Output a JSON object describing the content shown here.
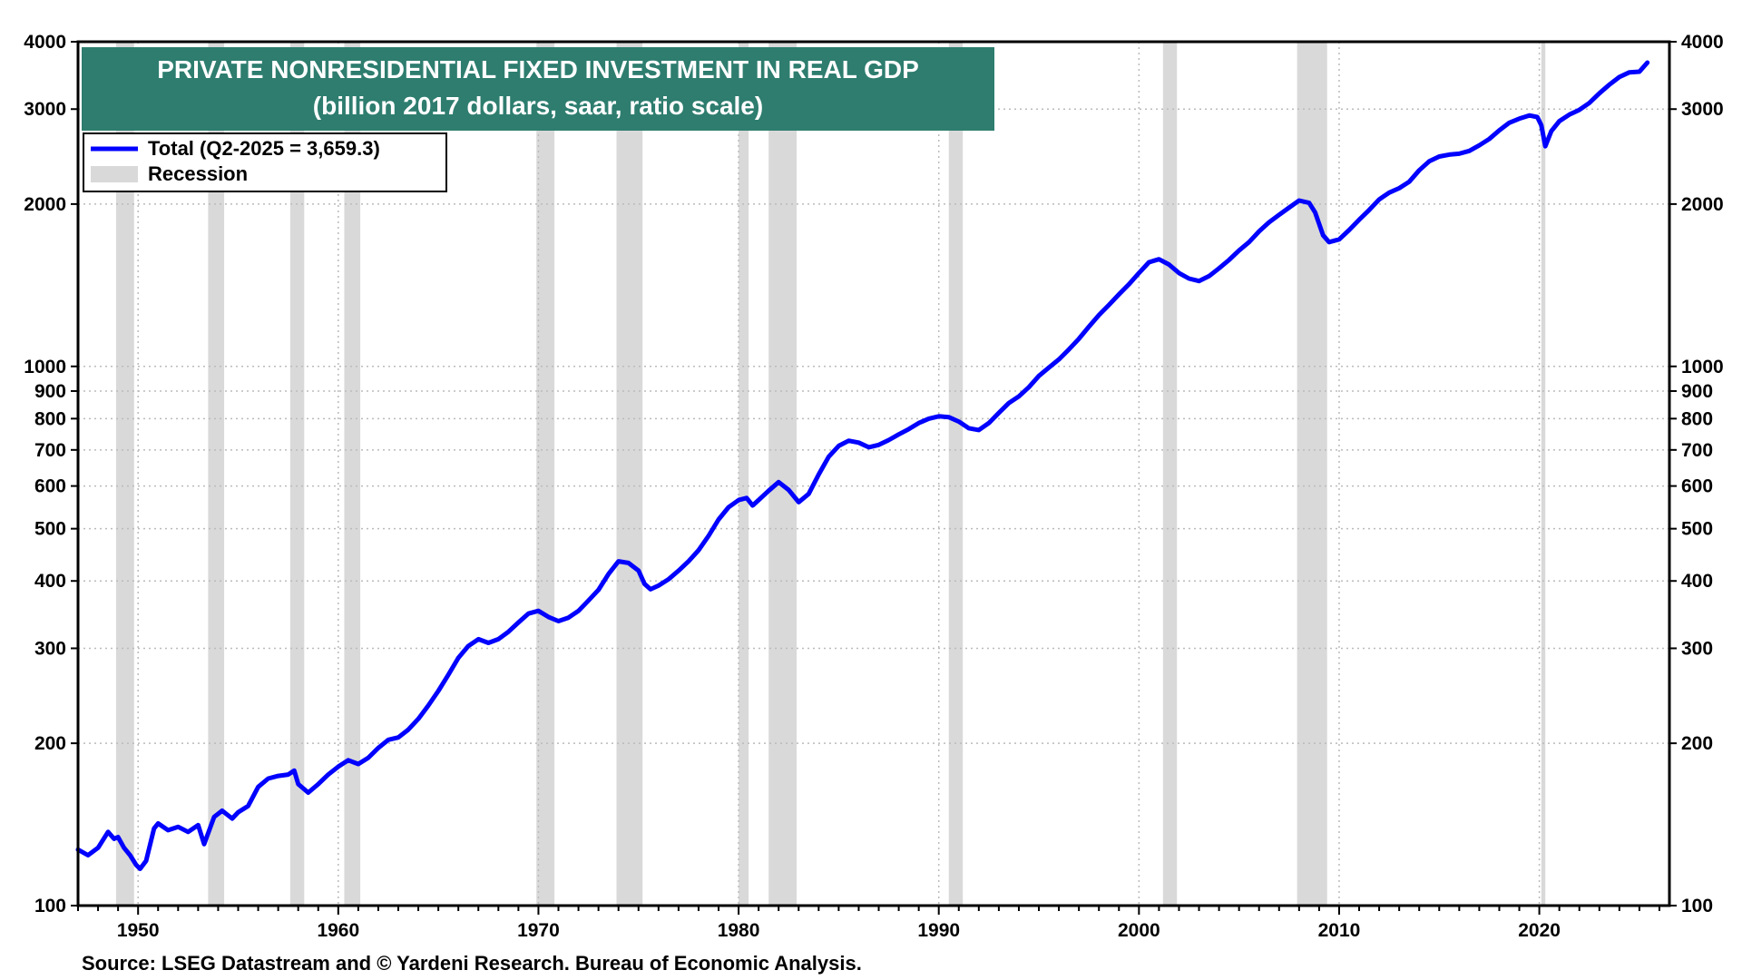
{
  "chart_data": {
    "type": "line",
    "title": "PRIVATE NONRESIDENTIAL FIXED INVESTMENT IN REAL GDP",
    "subtitle": "(billion 2017 dollars, saar, ratio scale)",
    "source": "Source: LSEG Datastream and © Yardeni Research. Bureau of Economic Analysis.",
    "y_scale": "log",
    "ylim": [
      100,
      4000
    ],
    "xlim": [
      1947.0,
      2026.5
    ],
    "x_ticks": [
      1950,
      1960,
      1970,
      1980,
      1990,
      2000,
      2010,
      2020
    ],
    "y_ticks": [
      100,
      200,
      300,
      400,
      500,
      600,
      700,
      800,
      900,
      1000,
      2000,
      3000,
      4000
    ],
    "grid": true,
    "legend_position": "top-left",
    "colors": {
      "series": "#0000ff",
      "recession": "#d9d9d9",
      "title_bg": "#2e7d6f",
      "grid": "#bbbbbb"
    },
    "legend": [
      {
        "label": "Total  (Q2-2025 = 3,659.3)",
        "kind": "line"
      },
      {
        "label": "Recession",
        "kind": "band"
      }
    ],
    "recessions": [
      [
        1948.9,
        1949.8
      ],
      [
        1953.5,
        1954.3
      ],
      [
        1957.6,
        1958.3
      ],
      [
        1960.3,
        1961.1
      ],
      [
        1969.9,
        1970.8
      ],
      [
        1973.9,
        1975.2
      ],
      [
        1980.0,
        1980.5
      ],
      [
        1981.5,
        1982.9
      ],
      [
        1990.5,
        1991.2
      ],
      [
        2001.2,
        2001.9
      ],
      [
        2007.9,
        2009.4
      ],
      [
        2020.1,
        2020.3
      ]
    ],
    "series": [
      {
        "name": "Total",
        "points": [
          [
            1947.0,
            127
          ],
          [
            1947.5,
            124
          ],
          [
            1948.0,
            128
          ],
          [
            1948.5,
            137
          ],
          [
            1948.8,
            133
          ],
          [
            1949.0,
            134
          ],
          [
            1949.3,
            128
          ],
          [
            1949.6,
            124
          ],
          [
            1949.9,
            119
          ],
          [
            1950.1,
            117
          ],
          [
            1950.4,
            121
          ],
          [
            1950.8,
            139
          ],
          [
            1951.0,
            142
          ],
          [
            1951.5,
            138
          ],
          [
            1952.0,
            140
          ],
          [
            1952.5,
            137
          ],
          [
            1953.0,
            141
          ],
          [
            1953.3,
            130
          ],
          [
            1953.8,
            146
          ],
          [
            1954.2,
            150
          ],
          [
            1954.7,
            145
          ],
          [
            1955.0,
            149
          ],
          [
            1955.5,
            153
          ],
          [
            1956.0,
            166
          ],
          [
            1956.5,
            172
          ],
          [
            1957.0,
            174
          ],
          [
            1957.5,
            175
          ],
          [
            1957.8,
            178
          ],
          [
            1958.0,
            168
          ],
          [
            1958.5,
            162
          ],
          [
            1959.0,
            168
          ],
          [
            1959.5,
            175
          ],
          [
            1960.0,
            181
          ],
          [
            1960.5,
            186
          ],
          [
            1961.0,
            183
          ],
          [
            1961.5,
            188
          ],
          [
            1962.0,
            196
          ],
          [
            1962.5,
            203
          ],
          [
            1963.0,
            205
          ],
          [
            1963.5,
            212
          ],
          [
            1964.0,
            222
          ],
          [
            1964.5,
            235
          ],
          [
            1965.0,
            250
          ],
          [
            1965.5,
            268
          ],
          [
            1966.0,
            288
          ],
          [
            1966.5,
            303
          ],
          [
            1967.0,
            312
          ],
          [
            1967.5,
            307
          ],
          [
            1968.0,
            312
          ],
          [
            1968.5,
            322
          ],
          [
            1969.0,
            335
          ],
          [
            1969.5,
            348
          ],
          [
            1970.0,
            352
          ],
          [
            1970.5,
            343
          ],
          [
            1971.0,
            337
          ],
          [
            1971.5,
            342
          ],
          [
            1972.0,
            352
          ],
          [
            1972.5,
            368
          ],
          [
            1973.0,
            385
          ],
          [
            1973.5,
            412
          ],
          [
            1974.0,
            435
          ],
          [
            1974.5,
            432
          ],
          [
            1975.0,
            418
          ],
          [
            1975.3,
            395
          ],
          [
            1975.6,
            386
          ],
          [
            1976.0,
            392
          ],
          [
            1976.5,
            403
          ],
          [
            1977.0,
            418
          ],
          [
            1977.5,
            435
          ],
          [
            1978.0,
            456
          ],
          [
            1978.5,
            485
          ],
          [
            1979.0,
            520
          ],
          [
            1979.5,
            548
          ],
          [
            1980.0,
            565
          ],
          [
            1980.4,
            570
          ],
          [
            1980.7,
            552
          ],
          [
            1981.0,
            565
          ],
          [
            1981.5,
            588
          ],
          [
            1982.0,
            610
          ],
          [
            1982.5,
            590
          ],
          [
            1983.0,
            560
          ],
          [
            1983.5,
            580
          ],
          [
            1984.0,
            630
          ],
          [
            1984.5,
            680
          ],
          [
            1985.0,
            712
          ],
          [
            1985.5,
            728
          ],
          [
            1986.0,
            722
          ],
          [
            1986.5,
            708
          ],
          [
            1987.0,
            715
          ],
          [
            1987.5,
            730
          ],
          [
            1988.0,
            748
          ],
          [
            1988.5,
            765
          ],
          [
            1989.0,
            785
          ],
          [
            1989.5,
            800
          ],
          [
            1990.0,
            808
          ],
          [
            1990.5,
            805
          ],
          [
            1991.0,
            790
          ],
          [
            1991.5,
            768
          ],
          [
            1992.0,
            762
          ],
          [
            1992.5,
            785
          ],
          [
            1993.0,
            820
          ],
          [
            1993.5,
            855
          ],
          [
            1994.0,
            880
          ],
          [
            1994.5,
            915
          ],
          [
            1995.0,
            960
          ],
          [
            1995.5,
            995
          ],
          [
            1996.0,
            1030
          ],
          [
            1996.5,
            1075
          ],
          [
            1997.0,
            1125
          ],
          [
            1997.5,
            1185
          ],
          [
            1998.0,
            1245
          ],
          [
            1998.5,
            1300
          ],
          [
            1999.0,
            1360
          ],
          [
            1999.5,
            1420
          ],
          [
            2000.0,
            1490
          ],
          [
            2000.5,
            1560
          ],
          [
            2001.0,
            1580
          ],
          [
            2001.5,
            1545
          ],
          [
            2002.0,
            1490
          ],
          [
            2002.5,
            1455
          ],
          [
            2003.0,
            1440
          ],
          [
            2003.5,
            1470
          ],
          [
            2004.0,
            1520
          ],
          [
            2004.5,
            1575
          ],
          [
            2005.0,
            1640
          ],
          [
            2005.5,
            1700
          ],
          [
            2006.0,
            1780
          ],
          [
            2006.5,
            1850
          ],
          [
            2007.0,
            1910
          ],
          [
            2007.5,
            1970
          ],
          [
            2008.0,
            2030
          ],
          [
            2008.5,
            2010
          ],
          [
            2008.8,
            1930
          ],
          [
            2009.2,
            1750
          ],
          [
            2009.5,
            1700
          ],
          [
            2010.0,
            1720
          ],
          [
            2010.5,
            1790
          ],
          [
            2011.0,
            1870
          ],
          [
            2011.5,
            1950
          ],
          [
            2012.0,
            2040
          ],
          [
            2012.5,
            2100
          ],
          [
            2013.0,
            2140
          ],
          [
            2013.5,
            2200
          ],
          [
            2014.0,
            2310
          ],
          [
            2014.5,
            2400
          ],
          [
            2015.0,
            2450
          ],
          [
            2015.5,
            2470
          ],
          [
            2016.0,
            2480
          ],
          [
            2016.5,
            2510
          ],
          [
            2017.0,
            2570
          ],
          [
            2017.5,
            2640
          ],
          [
            2018.0,
            2740
          ],
          [
            2018.5,
            2830
          ],
          [
            2019.0,
            2880
          ],
          [
            2019.5,
            2920
          ],
          [
            2019.9,
            2900
          ],
          [
            2020.1,
            2800
          ],
          [
            2020.3,
            2560
          ],
          [
            2020.6,
            2730
          ],
          [
            2021.0,
            2850
          ],
          [
            2021.5,
            2930
          ],
          [
            2022.0,
            2990
          ],
          [
            2022.5,
            3080
          ],
          [
            2023.0,
            3210
          ],
          [
            2023.5,
            3330
          ],
          [
            2024.0,
            3440
          ],
          [
            2024.5,
            3510
          ],
          [
            2025.0,
            3520
          ],
          [
            2025.4,
            3659.3
          ]
        ]
      }
    ]
  }
}
